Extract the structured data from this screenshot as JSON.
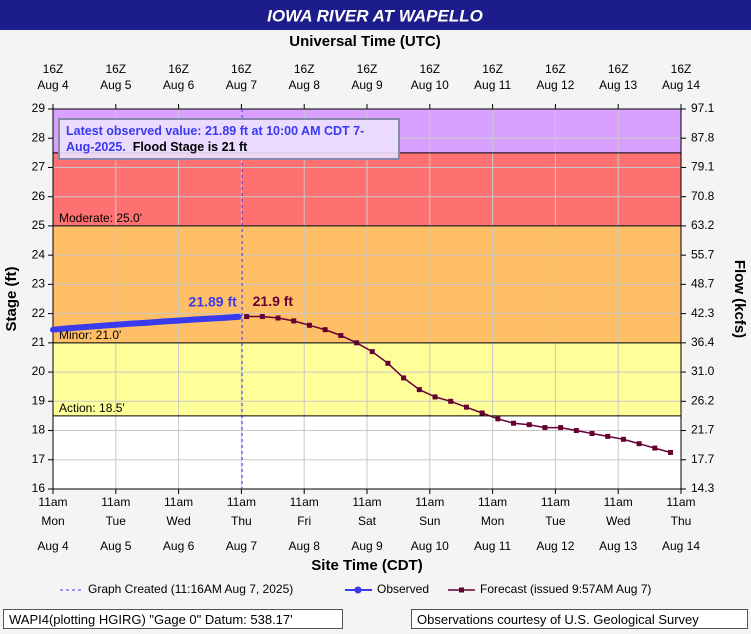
{
  "chart_data": {
    "type": "line",
    "title": "IOWA RIVER AT WAPELLO",
    "top_axis_title": "Universal Time (UTC)",
    "xlabel": "Site Time (CDT)",
    "ylabel": "Stage (ft)",
    "y2label": "Flow (kcfs)",
    "xlim": [
      "Aug 4 11:00",
      "Aug 14 11:00"
    ],
    "xticks": [
      {
        "value": "Aug 4 11:00",
        "time": "11am",
        "weekday": "Mon",
        "date": "Aug 4"
      },
      {
        "value": "Aug 5 11:00",
        "time": "11am",
        "weekday": "Tue",
        "date": "Aug 5"
      },
      {
        "value": "Aug 6 11:00",
        "time": "11am",
        "weekday": "Wed",
        "date": "Aug 6"
      },
      {
        "value": "Aug 7 11:00",
        "time": "11am",
        "weekday": "Thu",
        "date": "Aug 7"
      },
      {
        "value": "Aug 8 11:00",
        "time": "11am",
        "weekday": "Fri",
        "date": "Aug 8"
      },
      {
        "value": "Aug 9 11:00",
        "time": "11am",
        "weekday": "Sat",
        "date": "Aug 9"
      },
      {
        "value": "Aug 10 11:00",
        "time": "11am",
        "weekday": "Sun",
        "date": "Aug 10"
      },
      {
        "value": "Aug 11 11:00",
        "time": "11am",
        "weekday": "Mon",
        "date": "Aug 11"
      },
      {
        "value": "Aug 12 11:00",
        "time": "11am",
        "weekday": "Tue",
        "date": "Aug 12"
      },
      {
        "value": "Aug 13 11:00",
        "time": "11am",
        "weekday": "Wed",
        "date": "Aug 13"
      },
      {
        "value": "Aug 14 11:00",
        "time": "11am",
        "weekday": "Thu",
        "date": "Aug 14"
      }
    ],
    "x2ticks": [
      {
        "value": "Aug 4 11:00",
        "hour": "16Z",
        "date": "Aug 4"
      },
      {
        "value": "Aug 5 11:00",
        "hour": "16Z",
        "date": "Aug 5"
      },
      {
        "value": "Aug 6 11:00",
        "hour": "16Z",
        "date": "Aug 6"
      },
      {
        "value": "Aug 7 11:00",
        "hour": "16Z",
        "date": "Aug 7"
      },
      {
        "value": "Aug 8 11:00",
        "hour": "16Z",
        "date": "Aug 8"
      },
      {
        "value": "Aug 9 11:00",
        "hour": "16Z",
        "date": "Aug 9"
      },
      {
        "value": "Aug 10 11:00",
        "hour": "16Z",
        "date": "Aug 10"
      },
      {
        "value": "Aug 11 11:00",
        "hour": "16Z",
        "date": "Aug 11"
      },
      {
        "value": "Aug 12 11:00",
        "hour": "16Z",
        "date": "Aug 12"
      },
      {
        "value": "Aug 13 11:00",
        "hour": "16Z",
        "date": "Aug 13"
      },
      {
        "value": "Aug 14 11:00",
        "hour": "16Z",
        "date": "Aug 14"
      }
    ],
    "ylim": [
      16,
      29
    ],
    "yticks": [
      16,
      17,
      18,
      19,
      20,
      21,
      22,
      23,
      24,
      25,
      26,
      27,
      28,
      29
    ],
    "y2lim": [
      14.3,
      97.1
    ],
    "y2ticks": [
      {
        "value": 14.3,
        "stage": 16
      },
      {
        "value": 17.7,
        "stage": 17
      },
      {
        "value": 21.7,
        "stage": 18
      },
      {
        "value": 26.2,
        "stage": 19
      },
      {
        "value": 31,
        "label": "31.0",
        "stage": 20
      },
      {
        "value": 36.4,
        "stage": 21
      },
      {
        "value": 42.3,
        "stage": 22
      },
      {
        "value": 48.7,
        "stage": 23
      },
      {
        "value": 55.7,
        "stage": 24
      },
      {
        "value": 63.2,
        "stage": 25
      },
      {
        "value": 70.8,
        "stage": 26
      },
      {
        "value": 79.1,
        "stage": 27
      },
      {
        "value": 87.8,
        "stage": 28
      },
      {
        "value": 97.1,
        "stage": 29
      }
    ],
    "grid": true,
    "flood_stages": [
      {
        "label": "Action: 18.5'",
        "value": 18.5,
        "color": "#ffff99"
      },
      {
        "label": "Minor: 21.0'",
        "value": 21,
        "color": "#ffbf66"
      },
      {
        "label": "Moderate: 25.0'",
        "value": 25,
        "color": "#ff7070"
      },
      {
        "value": 27.5,
        "color": "#d9a0ff"
      }
    ],
    "graph_created": {
      "x": "Aug 7 11:16",
      "label": "Graph Created (11:16AM Aug 7, 2025)"
    },
    "annotation": {
      "observed": "Latest observed value: 21.89 ft at 10:00 AM CDT 7-Aug-2025.",
      "flood": "Flood Stage is 21 ft"
    },
    "series": [
      {
        "name": "Observed",
        "color": "#3a3aee",
        "x": [
          "Aug 4 11:00",
          "Aug 4 17:00",
          "Aug 4 23:00",
          "Aug 5 5:00",
          "Aug 5 11:00",
          "Aug 5 17:00",
          "Aug 5 23:00",
          "Aug 6 5:00",
          "Aug 6 11:00",
          "Aug 6 17:00",
          "Aug 6 23:00",
          "Aug 7 5:00",
          "Aug 7 10:00"
        ],
        "values": [
          21.45,
          21.5,
          21.54,
          21.58,
          21.62,
          21.66,
          21.69,
          21.73,
          21.76,
          21.8,
          21.83,
          21.86,
          21.89
        ],
        "value_labels": [
          null,
          null,
          null,
          null,
          null,
          null,
          null,
          null,
          null,
          null,
          null,
          null,
          "21.89 ft"
        ]
      },
      {
        "name": "Forecast (issued 9:57AM Aug 7)",
        "color": "#660033",
        "x": [
          "Aug 7 13:00",
          "Aug 7 19:00",
          "Aug 8 1:00",
          "Aug 8 7:00",
          "Aug 8 13:00",
          "Aug 8 19:00",
          "Aug 9 1:00",
          "Aug 9 7:00",
          "Aug 9 13:00",
          "Aug 9 19:00",
          "Aug 10 1:00",
          "Aug 10 7:00",
          "Aug 10 13:00",
          "Aug 10 19:00",
          "Aug 11 1:00",
          "Aug 11 7:00",
          "Aug 11 13:00",
          "Aug 11 19:00",
          "Aug 12 1:00",
          "Aug 12 7:00",
          "Aug 12 13:00",
          "Aug 12 19:00",
          "Aug 13 1:00",
          "Aug 13 7:00",
          "Aug 13 13:00",
          "Aug 13 19:00",
          "Aug 14 1:00",
          "Aug 14 7:00"
        ],
        "values": [
          21.9,
          21.9,
          21.85,
          21.75,
          21.6,
          21.45,
          21.25,
          21.0,
          20.7,
          20.3,
          19.8,
          19.4,
          19.15,
          19.0,
          18.8,
          18.6,
          18.4,
          18.25,
          18.2,
          18.1,
          18.1,
          18.0,
          17.9,
          17.8,
          17.7,
          17.55,
          17.4,
          17.25
        ],
        "value_labels": [
          "21.9 ft",
          null,
          null,
          null,
          null,
          null,
          null,
          null,
          null,
          null,
          null,
          null,
          null,
          null,
          null,
          null,
          null,
          null,
          null,
          null,
          null,
          null,
          null,
          null,
          null,
          null,
          null,
          null
        ]
      }
    ],
    "footer_left": "WAPI4(plotting HGIRG) \"Gage 0\" Datum: 538.17'",
    "footer_right": "Observations courtesy of U.S. Geological Survey"
  }
}
